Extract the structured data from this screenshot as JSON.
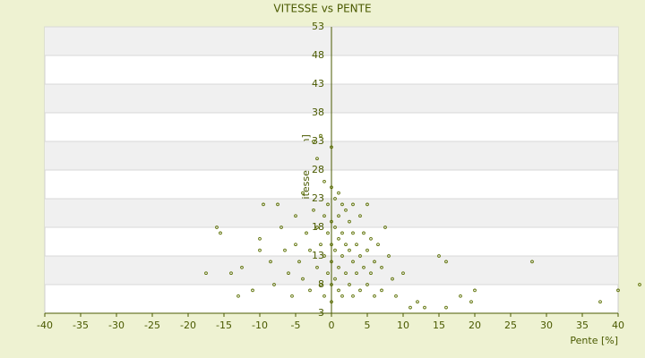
{
  "chart_data": {
    "type": "scatter",
    "title": "VITESSE vs PENTE",
    "x_label": "Pente [%]",
    "y_label": "Vitesse [km/h]",
    "xlim": [
      -40,
      40
    ],
    "xticks": [
      -40,
      -35,
      -30,
      -25,
      -20,
      -15,
      -10,
      -5,
      0,
      5,
      10,
      15,
      20,
      25,
      30,
      35,
      40
    ],
    "ylim": [
      3,
      53
    ],
    "yticks": [
      3,
      8,
      13,
      18,
      23,
      28,
      33,
      38,
      43,
      48,
      53
    ],
    "grid": true,
    "color": "#5a6e00",
    "x": [
      -16,
      -15.5,
      -17.5,
      -14,
      -12.5,
      -13,
      -11,
      -10,
      -9.5,
      -10,
      -8.5,
      -8,
      -7.5,
      -7,
      -6.5,
      -6,
      -5.5,
      -5,
      -5,
      -4.5,
      -4,
      -4,
      -3.5,
      -3,
      -3,
      -2.5,
      -2.5,
      -2,
      -2,
      -2,
      -1.5,
      -1.5,
      -1.5,
      -1,
      -1,
      -1,
      -1,
      -0.5,
      -0.5,
      -0.5,
      0,
      0,
      0,
      0,
      0,
      0,
      0,
      0.5,
      0.5,
      0.5,
      0.5,
      1,
      1,
      1,
      1,
      1,
      1.5,
      1.5,
      1.5,
      1.5,
      2,
      2,
      2,
      2.5,
      2.5,
      2.5,
      3,
      3,
      3,
      3,
      3.5,
      3.5,
      4,
      4,
      4,
      4.5,
      4.5,
      5,
      5,
      5,
      5.5,
      5.5,
      6,
      6,
      6.5,
      7,
      7,
      7.5,
      8,
      8.5,
      9,
      10,
      11,
      12,
      13,
      15,
      16,
      16,
      18,
      19.5,
      20,
      28,
      37.5,
      40,
      43
    ],
    "y": [
      18,
      17,
      10,
      10,
      11,
      6,
      7,
      16,
      22,
      14,
      12,
      8,
      22,
      18,
      14,
      10,
      6,
      20,
      15,
      12,
      9,
      24,
      17,
      14,
      7,
      33,
      21,
      30,
      18,
      11,
      34,
      15,
      8,
      26,
      20,
      13,
      6,
      22,
      17,
      10,
      32,
      25,
      19,
      15,
      12,
      8,
      5,
      23,
      18,
      14,
      9,
      24,
      20,
      16,
      11,
      7,
      22,
      17,
      13,
      6,
      21,
      15,
      10,
      19,
      14,
      8,
      22,
      17,
      12,
      6,
      15,
      10,
      20,
      13,
      7,
      17,
      11,
      22,
      14,
      8,
      16,
      10,
      12,
      6,
      15,
      11,
      7,
      18,
      13,
      9,
      6,
      10,
      4,
      5,
      4,
      13,
      12,
      4,
      6,
      5,
      7,
      12,
      5,
      7,
      8
    ]
  }
}
